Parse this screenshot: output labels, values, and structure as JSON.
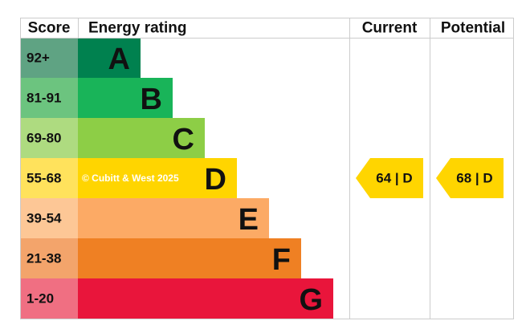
{
  "header": {
    "score": "Score",
    "rating": "Energy rating",
    "current": "Current",
    "potential": "Potential"
  },
  "bands": [
    {
      "score": "92+",
      "letter": "A",
      "color": "#00814f",
      "light": "#5fa383"
    },
    {
      "score": "81-91",
      "letter": "B",
      "color": "#19b459",
      "light": "#6cc47f"
    },
    {
      "score": "69-80",
      "letter": "C",
      "color": "#8dce46",
      "light": "#aedb80"
    },
    {
      "score": "55-68",
      "letter": "D",
      "color": "#ffd500",
      "light": "#ffe25c"
    },
    {
      "score": "39-54",
      "letter": "E",
      "color": "#fcaa65",
      "light": "#fdc796"
    },
    {
      "score": "21-38",
      "letter": "F",
      "color": "#ef8023",
      "light": "#f3a46b"
    },
    {
      "score": "1-20",
      "letter": "G",
      "color": "#e9153b",
      "light": "#f06f82"
    }
  ],
  "current": {
    "label": "64 | D"
  },
  "potential": {
    "label": "68 | D"
  },
  "watermark": "© Cubitt & West 2025"
}
